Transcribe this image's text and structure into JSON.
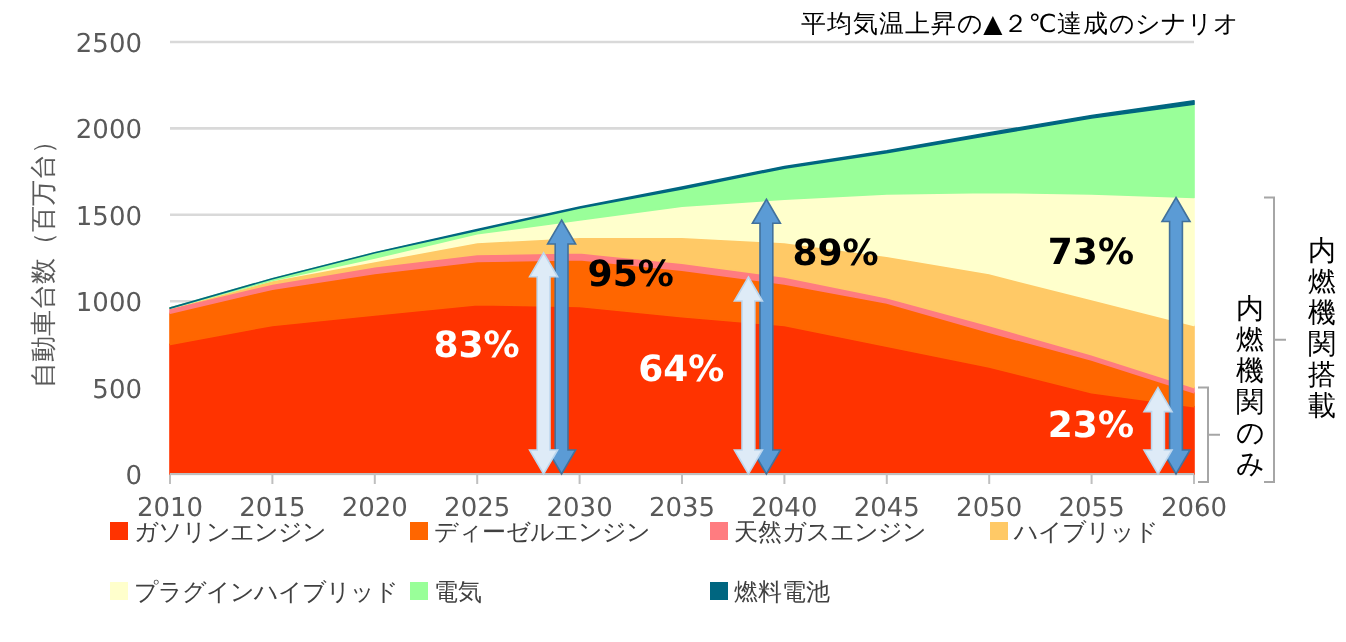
{
  "chart_data": {
    "type": "area",
    "stacked": true,
    "title": "平均気温上昇の▲２℃達成のシナリオ",
    "ylabel": "自動車台数（百万台）",
    "x": [
      "2010",
      "2015",
      "2020",
      "2025",
      "2030",
      "2035",
      "2040",
      "2045",
      "2050",
      "2055",
      "2060"
    ],
    "xlim": [
      "2010",
      "2060"
    ],
    "xticks": [
      "2010",
      "2015",
      "2020",
      "2025",
      "2030",
      "2035",
      "2040",
      "2045",
      "2050",
      "2055",
      "2060"
    ],
    "ylim": [
      0,
      2500
    ],
    "yticks": [
      0,
      500,
      1000,
      1500,
      2000,
      2500
    ],
    "grid": "y",
    "legend": "bottom",
    "series": [
      {
        "name": "ガソリンエンジン",
        "color": "#ff3300",
        "values": [
          750,
          860,
          920,
          980,
          970,
          910,
          860,
          740,
          620,
          470,
          390
        ]
      },
      {
        "name": "ディーゼルエンジン",
        "color": "#ff6600",
        "values": [
          180,
          210,
          240,
          250,
          270,
          270,
          240,
          250,
          200,
          190,
          80
        ]
      },
      {
        "name": "天然ガスエンジン",
        "color": "#ff7c80",
        "values": [
          30,
          30,
          40,
          40,
          40,
          40,
          40,
          30,
          40,
          30,
          30
        ]
      },
      {
        "name": "ハイブリッド",
        "color": "#ffc966",
        "values": [
          0,
          20,
          30,
          70,
          90,
          150,
          200,
          240,
          300,
          320,
          360
        ]
      },
      {
        "name": "プラグインハイブリッド",
        "color": "#ffffcc",
        "values": [
          0,
          0,
          20,
          50,
          100,
          180,
          250,
          360,
          470,
          610,
          740
        ]
      },
      {
        "name": "電気",
        "color": "#99ff99",
        "values": [
          0,
          10,
          30,
          20,
          70,
          100,
          180,
          240,
          330,
          440,
          540
        ]
      },
      {
        "name": "燃料電池",
        "color": "#006680",
        "values": [
          0,
          0,
          0,
          5,
          5,
          10,
          10,
          10,
          15,
          15,
          20
        ]
      }
    ],
    "annotations": [
      {
        "text": "83%",
        "x": "2030",
        "y": 1280
      },
      {
        "text": "95%",
        "x": "2030",
        "y": 1470
      },
      {
        "text": "64%",
        "x": "2040",
        "y": 1140
      },
      {
        "text": "89%",
        "x": "2040",
        "y": 1590
      },
      {
        "text": "73%",
        "x": "2060",
        "y": 1600
      },
      {
        "text": "23%",
        "x": "2060",
        "y": 500
      },
      "内燃機関搭載",
      "内燃機関のみ"
    ]
  }
}
